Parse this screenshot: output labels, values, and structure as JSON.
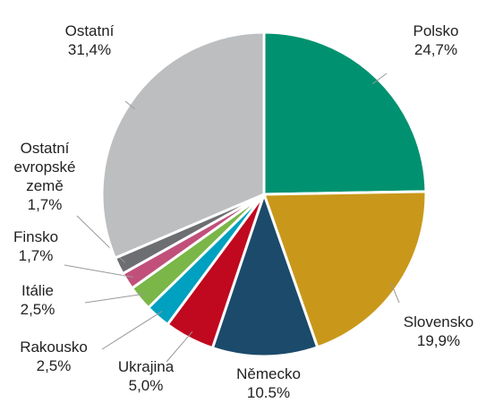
{
  "chart_data": {
    "type": "pie",
    "categories": [
      "Polsko",
      "Slovensko",
      "Německo",
      "Ukrajina",
      "Rakousko",
      "Itálie",
      "Finsko",
      "Ostatní evropské země",
      "Ostatní"
    ],
    "values": [
      24.7,
      19.9,
      10.5,
      5.0,
      2.5,
      2.5,
      1.7,
      1.7,
      31.4
    ],
    "value_labels": [
      "24,7%",
      "19,9%",
      "10.5%",
      "5,0%",
      "2,5%",
      "2,5%",
      "1,7%",
      "1,7%",
      "31,4%"
    ],
    "colors": [
      "#009270",
      "#c9981a",
      "#1b4a6b",
      "#c0081f",
      "#00a0c0",
      "#7ab648",
      "#c0507a",
      "#6d6e71",
      "#bcbec0"
    ]
  }
}
